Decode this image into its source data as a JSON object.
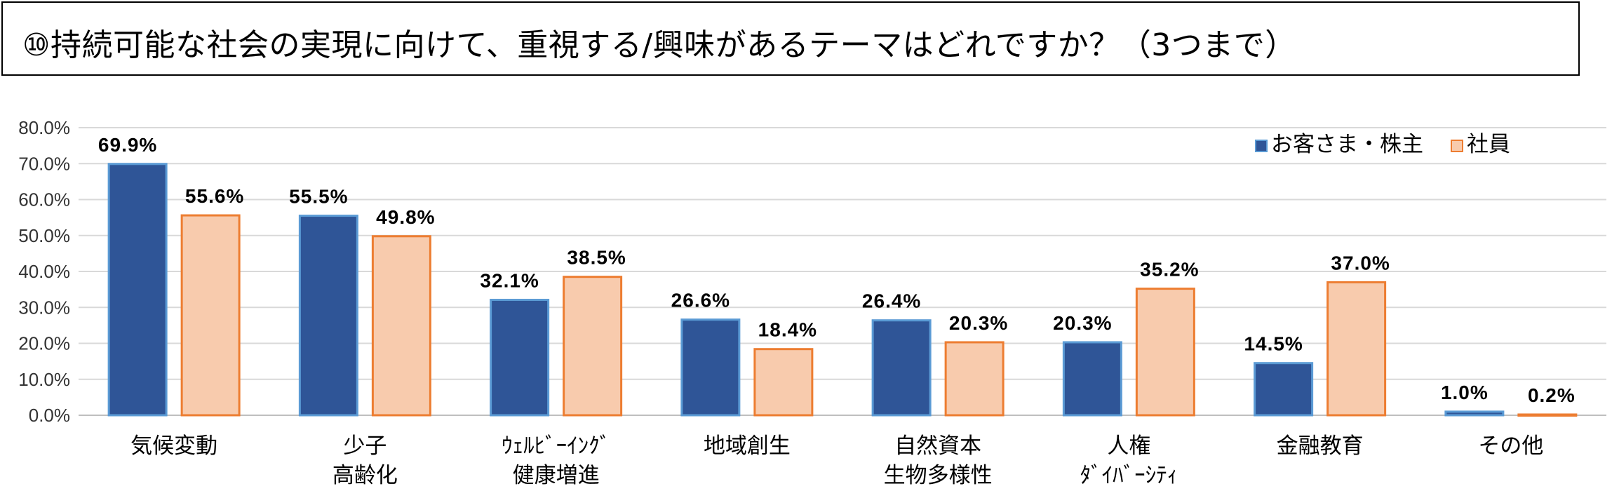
{
  "title": "⑩持続可能な社会の実現に向けて、重視する/興味があるテーマはどれですか？（3つまで）",
  "chart_data": {
    "type": "bar",
    "categories": [
      [
        "気候変動"
      ],
      [
        "少子",
        "高齢化"
      ],
      [
        "ｳｪﾙﾋﾞｰｲﾝｸﾞ",
        "健康増進"
      ],
      [
        "地域創生"
      ],
      [
        "自然資本",
        "生物多様性"
      ],
      [
        "人権",
        "ﾀﾞｲﾊﾞｰｼﾃｨ"
      ],
      [
        "金融教育"
      ],
      [
        "その他"
      ]
    ],
    "series": [
      {
        "name": "お客さま・株主",
        "values": [
          69.9,
          55.5,
          32.1,
          26.6,
          26.4,
          20.3,
          14.5,
          1.0
        ],
        "labels": [
          "69.9%",
          "55.5%",
          "32.1%",
          "26.6%",
          "26.4%",
          "20.3%",
          "14.5%",
          "1.0%"
        ],
        "fill": "#2F5597",
        "stroke": "#5B9BD5"
      },
      {
        "name": "社員",
        "values": [
          55.6,
          49.8,
          38.5,
          18.4,
          20.3,
          35.2,
          37.0,
          0.2
        ],
        "labels": [
          "55.6%",
          "49.8%",
          "38.5%",
          "18.4%",
          "20.3%",
          "35.2%",
          "37.0%",
          "0.2%"
        ],
        "fill": "#F8CBAD",
        "stroke": "#ED7D31"
      }
    ],
    "ylim": [
      0,
      80
    ],
    "yticks": [
      "0.0%",
      "10.0%",
      "20.0%",
      "30.0%",
      "40.0%",
      "50.0%",
      "60.0%",
      "70.0%",
      "80.0%"
    ],
    "grid": true,
    "legend": "top-right"
  }
}
